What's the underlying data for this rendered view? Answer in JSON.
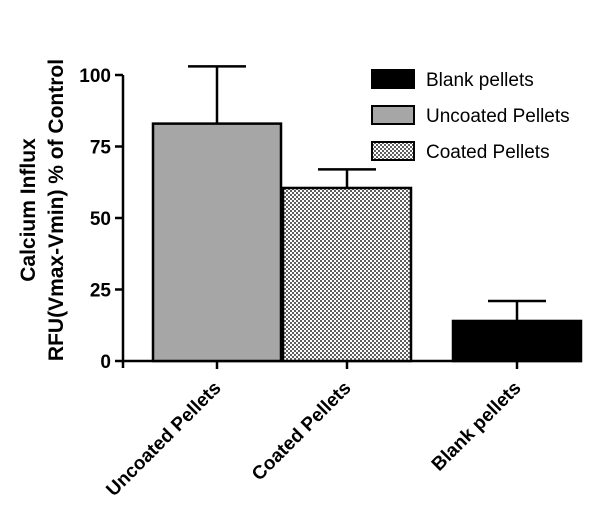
{
  "chart_data": {
    "type": "bar",
    "categories": [
      "Uncoated Pellets",
      "Coated Pellets",
      "Blank pellets"
    ],
    "values": [
      83,
      60.5,
      14
    ],
    "error_upper": [
      103,
      67,
      21
    ],
    "fills": [
      "gray",
      "checker",
      "black"
    ],
    "ylabel_lines": [
      "Calcium Influx",
      "RFU(Vmax-Vmin) % of Control"
    ],
    "ylim": [
      0,
      100
    ],
    "yticks": [
      "0",
      "25",
      "50",
      "75",
      "100"
    ],
    "legend": {
      "position": "top-right",
      "entries": [
        {
          "label": "Blank pellets",
          "fill": "black"
        },
        {
          "label": "Uncoated Pellets",
          "fill": "gray"
        },
        {
          "label": "Coated Pellets",
          "fill": "checker"
        }
      ]
    },
    "colors": {
      "gray": "#a6a6a6",
      "black": "#000000",
      "checker_dark": "#606060",
      "checker_light": "#ffffff"
    }
  }
}
